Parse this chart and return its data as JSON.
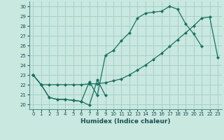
{
  "xlabel": "Humidex (Indice chaleur)",
  "xlim": [
    -0.5,
    23.5
  ],
  "ylim": [
    19.5,
    30.5
  ],
  "xticks": [
    0,
    1,
    2,
    3,
    4,
    5,
    6,
    7,
    8,
    9,
    10,
    11,
    12,
    13,
    14,
    15,
    16,
    17,
    18,
    19,
    20,
    21,
    22,
    23
  ],
  "yticks": [
    20,
    21,
    22,
    23,
    24,
    25,
    26,
    27,
    28,
    29,
    30
  ],
  "bg_color": "#c8e8e0",
  "grid_color": "#a8d0c8",
  "line_color": "#1a7060",
  "line1_x": [
    0,
    1,
    2,
    3,
    4,
    5,
    6,
    7,
    8,
    9,
    10,
    11,
    12,
    13,
    14,
    15,
    16,
    17,
    18,
    19,
    20,
    21
  ],
  "line1_y": [
    23.0,
    22.0,
    20.7,
    20.5,
    20.5,
    20.4,
    20.3,
    22.3,
    20.9,
    25.0,
    25.5,
    26.5,
    27.3,
    28.8,
    29.3,
    29.4,
    29.5,
    30.0,
    29.7,
    28.2,
    27.2,
    25.9
  ],
  "line2_x": [
    0,
    1,
    2,
    3,
    4,
    5,
    6,
    7,
    8,
    9,
    10,
    11,
    12,
    13,
    14,
    15,
    16,
    17,
    18,
    19,
    20,
    21,
    22,
    23
  ],
  "line2_y": [
    23.0,
    22.0,
    22.0,
    22.0,
    22.0,
    22.0,
    22.0,
    22.1,
    22.1,
    22.2,
    22.4,
    22.6,
    23.0,
    23.5,
    24.0,
    24.6,
    25.2,
    25.9,
    26.6,
    27.3,
    28.0,
    28.8,
    28.9,
    24.8
  ],
  "line3_x": [
    0,
    1,
    2,
    3,
    4,
    5,
    6,
    7,
    8,
    9
  ],
  "line3_y": [
    23.0,
    22.0,
    20.7,
    20.5,
    20.5,
    20.4,
    20.3,
    19.9,
    22.5,
    20.9
  ]
}
